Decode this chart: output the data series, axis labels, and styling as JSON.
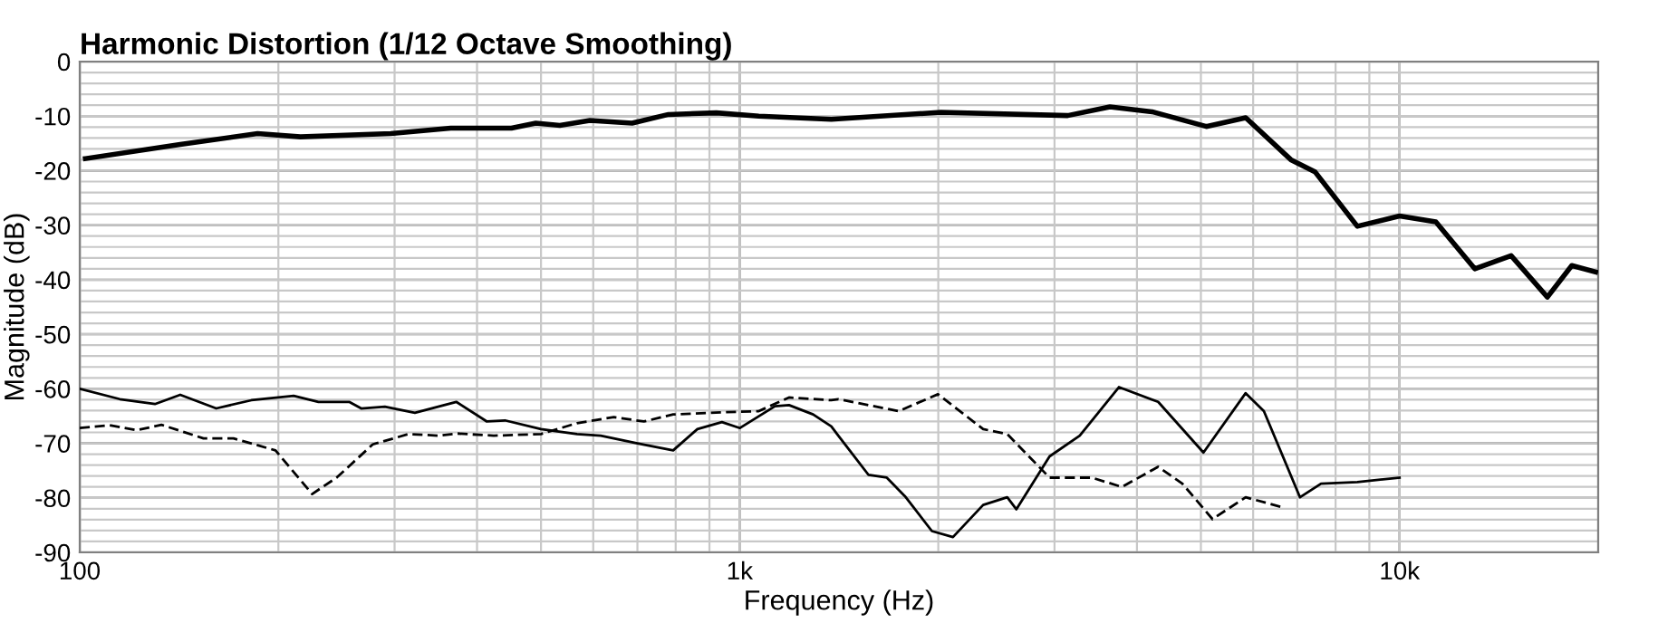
{
  "chart_data": {
    "type": "line",
    "title": "Harmonic Distortion (1/12 Octave Smoothing)",
    "xlabel": "Frequency (Hz)",
    "ylabel": "Magnitude (dB)",
    "log": "x",
    "grid": true,
    "marker": "none",
    "xlim": [
      100,
      20000
    ],
    "ylim": [
      -90,
      0
    ],
    "xticks": [
      100,
      {
        "value": 200,
        "label": null
      },
      {
        "value": 300,
        "label": null
      },
      {
        "value": 400,
        "label": null
      },
      {
        "value": 500,
        "label": null
      },
      {
        "value": 600,
        "label": null
      },
      {
        "value": 700,
        "label": null
      },
      {
        "value": 800,
        "label": null
      },
      {
        "value": 900,
        "label": null
      },
      {
        "value": 1000,
        "label": "1k"
      },
      {
        "value": 2000,
        "label": null
      },
      {
        "value": 3000,
        "label": null
      },
      {
        "value": 4000,
        "label": null
      },
      {
        "value": 5000,
        "label": null
      },
      {
        "value": 6000,
        "label": null
      },
      {
        "value": 7000,
        "label": null
      },
      {
        "value": 8000,
        "label": null
      },
      {
        "value": 9000,
        "label": null
      },
      {
        "value": 10000,
        "label": "10k"
      },
      {
        "value": 20000,
        "label": null
      }
    ],
    "yticks": [
      -90,
      {
        "value": -88,
        "label": null
      },
      {
        "value": -86,
        "label": null
      },
      {
        "value": -84,
        "label": null
      },
      {
        "value": -82,
        "label": null
      },
      -80,
      {
        "value": -78,
        "label": null
      },
      {
        "value": -76,
        "label": null
      },
      {
        "value": -74,
        "label": null
      },
      {
        "value": -72,
        "label": null
      },
      -70,
      {
        "value": -68,
        "label": null
      },
      {
        "value": -66,
        "label": null
      },
      {
        "value": -64,
        "label": null
      },
      {
        "value": -62,
        "label": null
      },
      -60,
      {
        "value": -58,
        "label": null
      },
      {
        "value": -56,
        "label": null
      },
      {
        "value": -54,
        "label": null
      },
      {
        "value": -52,
        "label": null
      },
      -50,
      {
        "value": -48,
        "label": null
      },
      {
        "value": -46,
        "label": null
      },
      {
        "value": -44,
        "label": null
      },
      {
        "value": -42,
        "label": null
      },
      -40,
      {
        "value": -38,
        "label": null
      },
      {
        "value": -36,
        "label": null
      },
      {
        "value": -34,
        "label": null
      },
      {
        "value": -32,
        "label": null
      },
      -30,
      {
        "value": -28,
        "label": null
      },
      {
        "value": -26,
        "label": null
      },
      {
        "value": -24,
        "label": null
      },
      {
        "value": -22,
        "label": null
      },
      -20,
      {
        "value": -18,
        "label": null
      },
      {
        "value": -16,
        "label": null
      },
      {
        "value": -14,
        "label": null
      },
      {
        "value": -12,
        "label": null
      },
      -10,
      {
        "value": -8,
        "label": null
      },
      {
        "value": -6,
        "label": null
      },
      {
        "value": -4,
        "label": null
      },
      {
        "value": -2,
        "label": null
      },
      0
    ],
    "series": [
      {
        "color": "#000000",
        "line_style": "solid",
        "x": [
          102,
          142,
          186,
          216,
          296,
          365,
          451,
          491,
          534,
          593,
          687,
          780,
          922,
          1069,
          1377,
          2018,
          3141,
          3640,
          4217,
          5094,
          5847,
          6845,
          7443,
          8630,
          10000,
          11350,
          13000,
          14760,
          16750,
          18240,
          19820
        ],
        "values": [
          -17.8,
          -15.2,
          -13.2,
          -13.8,
          -13.2,
          -12.2,
          -12.2,
          -11.3,
          -11.7,
          -10.8,
          -11.3,
          -9.7,
          -9.4,
          -10,
          -10.6,
          -9.3,
          -9.9,
          -8.3,
          -9.2,
          -11.9,
          -10.3,
          -18,
          -20.2,
          -30.2,
          -28.3,
          -29.4,
          -38,
          -35.6,
          -43.2,
          -37.4,
          -38.6
        ]
      },
      {
        "color": "#000000",
        "line_style": "solid",
        "x": [
          100,
          115,
          130,
          142,
          161,
          182,
          211,
          230,
          256,
          267,
          290,
          322,
          372,
          414,
          441,
          500,
          567,
          616,
          700,
          793,
          863,
          940,
          1001,
          1131,
          1188,
          1292,
          1377,
          1411,
          1568,
          1671,
          1780,
          1956,
          2105,
          2339,
          2544,
          2626,
          2949,
          3276,
          3756,
          4307,
          5045,
          5845,
          6229,
          7066,
          7604,
          8630,
          10000
        ],
        "values": [
          -60,
          -61.9,
          -62.8,
          -61.1,
          -63.6,
          -62.1,
          -61.3,
          -62.4,
          -62.4,
          -63.6,
          -63.3,
          -64.4,
          -62.4,
          -66,
          -65.8,
          -67.4,
          -68.3,
          -68.6,
          -70,
          -71.3,
          -67.4,
          -66.1,
          -67.2,
          -63.2,
          -63,
          -64.7,
          -66.9,
          -68.6,
          -75.8,
          -76.3,
          -79.7,
          -86.1,
          -87.2,
          -81.3,
          -79.9,
          -82.1,
          -72.4,
          -68.6,
          -59.7,
          -62.4,
          -71.7,
          -60.8,
          -64.1,
          -79.9,
          -77.4,
          -77.1,
          -76.3
        ]
      },
      {
        "color": "#000000",
        "line_style": "dashed",
        "x": [
          100,
          111,
          122,
          133,
          154,
          171,
          198,
          225,
          245,
          278,
          315,
          350,
          373,
          424,
          500,
          567,
          645,
          716,
          793,
          940,
          1069,
          1188,
          1377,
          1411,
          1742,
          1998,
          2339,
          2544,
          2949,
          3417,
          3796,
          4307,
          4687,
          5206,
          5845,
          6633
        ],
        "values": [
          -67.2,
          -66.7,
          -67.6,
          -66.6,
          -69.1,
          -69.1,
          -71.3,
          -79.3,
          -76.3,
          -70.2,
          -68.3,
          -68.6,
          -68.2,
          -68.6,
          -68.3,
          -66.3,
          -65.2,
          -66,
          -64.7,
          -64.3,
          -64.1,
          -61.6,
          -62.1,
          -61.9,
          -64.1,
          -61,
          -67.4,
          -68.3,
          -76.3,
          -76.3,
          -78,
          -74.3,
          -77.4,
          -83.9,
          -79.9,
          -81.7
        ]
      }
    ]
  }
}
